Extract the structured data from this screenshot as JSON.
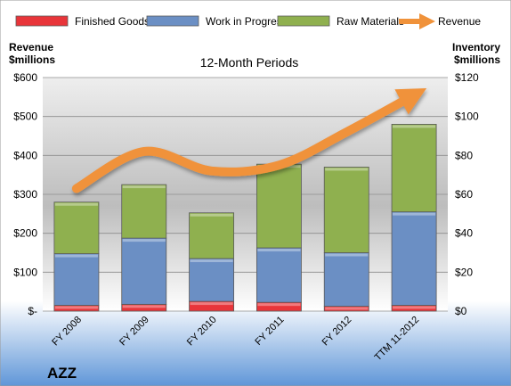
{
  "chart_data": {
    "type": "bar",
    "stacked": true,
    "title": "12-Month Periods",
    "company": "AZZ",
    "left_axis_label": [
      "Revenue",
      "$millions"
    ],
    "right_axis_label": [
      "Inventory",
      "$millions"
    ],
    "categories": [
      "FY 2008",
      "FY 2009",
      "FY 2010",
      "FY 2011",
      "FY 2012",
      "TTM 11-2012"
    ],
    "left_ticks": [
      "$-",
      "$100",
      "$200",
      "$300",
      "$400",
      "$500",
      "$600"
    ],
    "right_ticks": [
      "$0",
      "$20",
      "$40",
      "$60",
      "$80",
      "$100",
      "$120"
    ],
    "ylim_left": [
      0,
      600
    ],
    "ylim_right": [
      0,
      120
    ],
    "series": [
      {
        "name": "Finished Goods",
        "axis": "right",
        "color": "#e8353a",
        "values": [
          3,
          3.5,
          5,
          4.5,
          2.5,
          3
        ]
      },
      {
        "name": "Work in Progress",
        "axis": "right",
        "color": "#6b8fc4",
        "values": [
          26.5,
          34,
          22,
          28,
          27.5,
          48
        ]
      },
      {
        "name": "Raw Materials",
        "axis": "right",
        "color": "#8fb04f",
        "values": [
          26.5,
          27.5,
          23.5,
          43,
          44,
          45
        ]
      },
      {
        "name": "Revenue",
        "axis": "left",
        "type": "line",
        "color": "#f0923a",
        "values": [
          315,
          410,
          360,
          375,
          460,
          555
        ]
      }
    ],
    "legend_position": "top",
    "grid": true
  }
}
